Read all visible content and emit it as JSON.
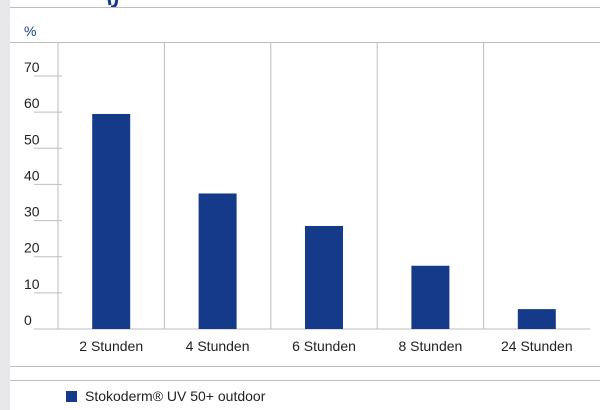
{
  "chart_data": {
    "type": "bar",
    "ylabel": "%",
    "categories": [
      "2 Stunden",
      "4 Stunden",
      "6 Stunden",
      "8 Stunden",
      "24 Stunden"
    ],
    "series": [
      {
        "name": "Stokoderm® UV 50+ outdoor",
        "values": [
          59.5,
          37.5,
          28.5,
          17.5,
          5.5
        ],
        "color": "#163a8a"
      }
    ],
    "ylim": [
      0,
      70
    ],
    "yticks": [
      0,
      10,
      20,
      30,
      40,
      50,
      60,
      70
    ],
    "grid": "vertical category separators",
    "legend_position": "bottom-left"
  }
}
